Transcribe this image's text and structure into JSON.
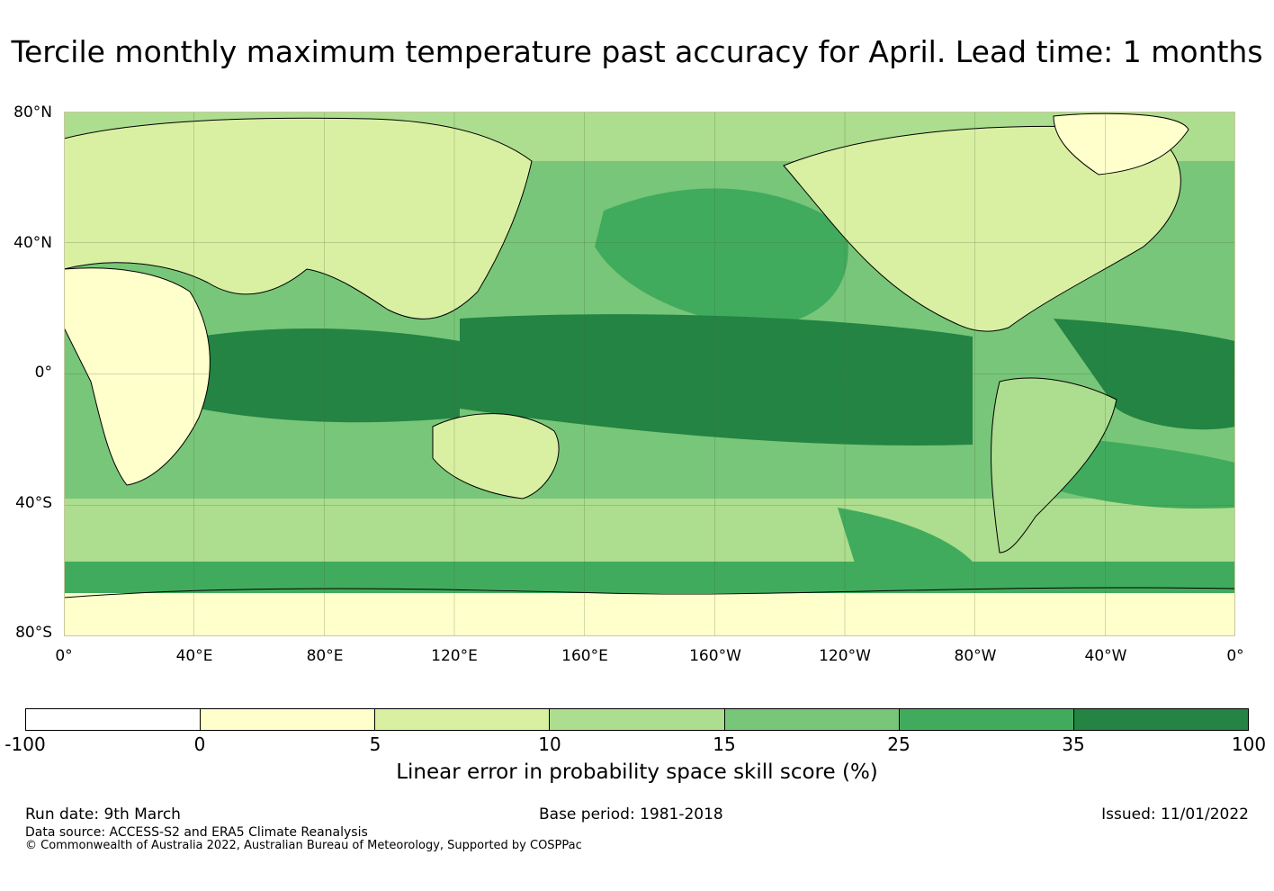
{
  "title": "Tercile monthly maximum temperature past accuracy for April. Lead time: 1 months",
  "map": {
    "lat_labels": [
      "80°N",
      "40°N",
      "0°",
      "40°S",
      "80°S"
    ],
    "lon_labels": [
      "0°",
      "40°E",
      "80°E",
      "120°E",
      "160°E",
      "160°W",
      "120°W",
      "80°W",
      "40°W",
      "0°"
    ],
    "colors": {
      "c0": "#ffffcc",
      "c5": "#d9f0a3",
      "c10": "#addd8e",
      "c15": "#78c679",
      "c25": "#41ab5d",
      "c35": "#238443",
      "land": "#d9f0a3",
      "grid": "#4a6b3a"
    }
  },
  "colorbar": {
    "ticks": [
      "-100",
      "0",
      "5",
      "10",
      "15",
      "25",
      "35",
      "100"
    ],
    "colors": [
      "#ffffff",
      "#ffffcc",
      "#d9f0a3",
      "#addd8e",
      "#78c679",
      "#41ab5d",
      "#238443"
    ],
    "label": "Linear error in probability space skill score (%)"
  },
  "footer": {
    "run_date": "Run date: 9th March",
    "base_period": "Base period: 1981-2018",
    "issued": "Issued: 11/01/2022",
    "data_source": "Data source: ACCESS-S2 and ERA5 Climate Reanalysis",
    "copyright": "© Commonwealth of Australia 2022, Australian Bureau of Meteorology, Supported by COSPPac"
  }
}
